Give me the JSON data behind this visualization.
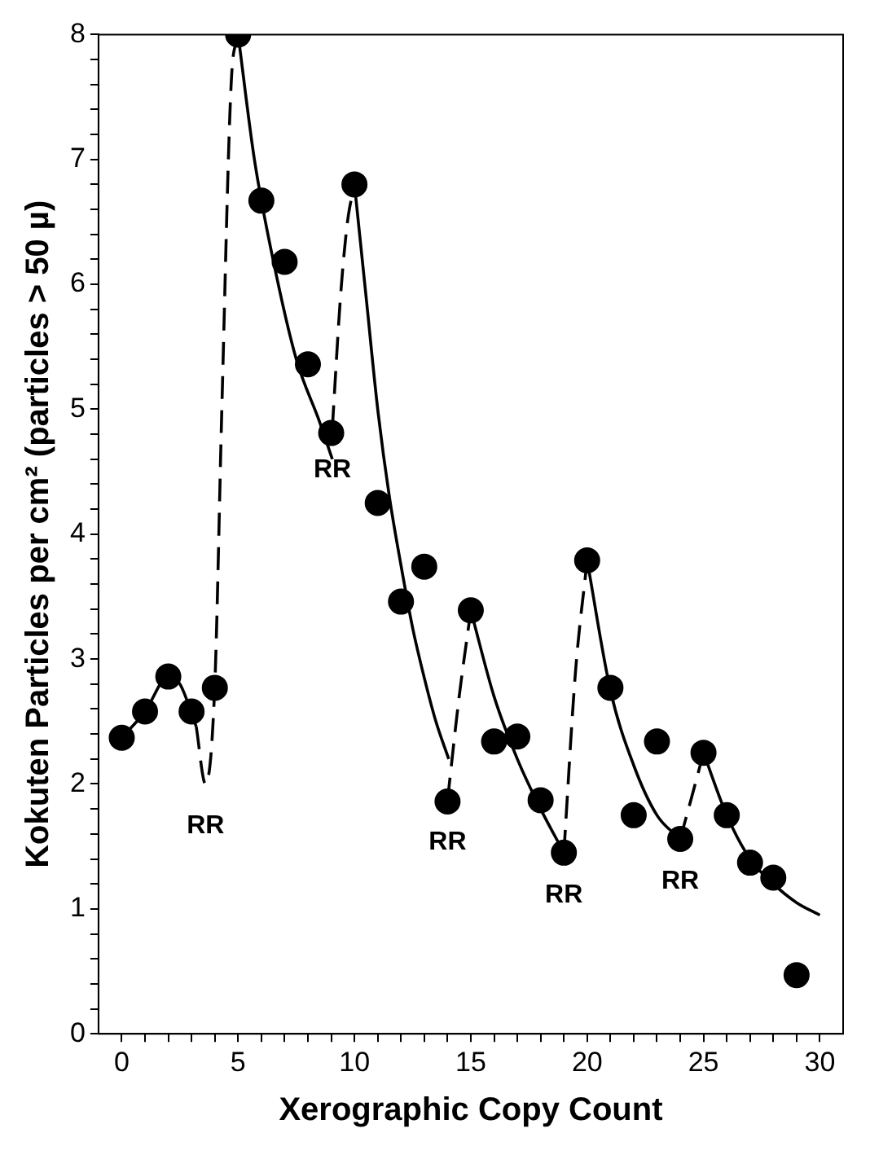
{
  "chart_data": {
    "type": "scatter",
    "xlabel": "Xerographic Copy Count",
    "ylabel": "Kokuten Particles per cm² (particles > 50 µ)",
    "xlim": [
      -1,
      31
    ],
    "ylim": [
      0,
      8
    ],
    "xticks": [
      0,
      {
        "value": 1,
        "label": null
      },
      {
        "value": 2,
        "label": null
      },
      {
        "value": 3,
        "label": null
      },
      {
        "value": 4,
        "label": null
      },
      5,
      {
        "value": 6,
        "label": null
      },
      {
        "value": 7,
        "label": null
      },
      {
        "value": 8,
        "label": null
      },
      {
        "value": 9,
        "label": null
      },
      10,
      {
        "value": 11,
        "label": null
      },
      {
        "value": 12,
        "label": null
      },
      {
        "value": 13,
        "label": null
      },
      {
        "value": 14,
        "label": null
      },
      15,
      {
        "value": 16,
        "label": null
      },
      {
        "value": 17,
        "label": null
      },
      {
        "value": 18,
        "label": null
      },
      {
        "value": 19,
        "label": null
      },
      20,
      {
        "value": 21,
        "label": null
      },
      {
        "value": 22,
        "label": null
      },
      {
        "value": 23,
        "label": null
      },
      {
        "value": 24,
        "label": null
      },
      25,
      {
        "value": 26,
        "label": null
      },
      {
        "value": 27,
        "label": null
      },
      {
        "value": 28,
        "label": null
      },
      {
        "value": 29,
        "label": null
      },
      30
    ],
    "yticks": [
      0,
      {
        "value": 0.2,
        "label": null
      },
      {
        "value": 0.4,
        "label": null
      },
      {
        "value": 0.6,
        "label": null
      },
      {
        "value": 0.8,
        "label": null
      },
      1,
      {
        "value": 1.2,
        "label": null
      },
      {
        "value": 1.4,
        "label": null
      },
      {
        "value": 1.6,
        "label": null
      },
      {
        "value": 1.8,
        "label": null
      },
      2,
      {
        "value": 2.2,
        "label": null
      },
      {
        "value": 2.4,
        "label": null
      },
      {
        "value": 2.6,
        "label": null
      },
      {
        "value": 2.8,
        "label": null
      },
      3,
      {
        "value": 3.2,
        "label": null
      },
      {
        "value": 3.4,
        "label": null
      },
      {
        "value": 3.6,
        "label": null
      },
      {
        "value": 3.8,
        "label": null
      },
      4,
      {
        "value": 4.2,
        "label": null
      },
      {
        "value": 4.4,
        "label": null
      },
      {
        "value": 4.6,
        "label": null
      },
      {
        "value": 4.8,
        "label": null
      },
      5,
      {
        "value": 5.2,
        "label": null
      },
      {
        "value": 5.4,
        "label": null
      },
      {
        "value": 5.6,
        "label": null
      },
      {
        "value": 5.8,
        "label": null
      },
      6,
      {
        "value": 6.2,
        "label": null
      },
      {
        "value": 6.4,
        "label": null
      },
      {
        "value": 6.6,
        "label": null
      },
      {
        "value": 6.8,
        "label": null
      },
      7,
      {
        "value": 7.2,
        "label": null
      },
      {
        "value": 7.4,
        "label": null
      },
      {
        "value": 7.6,
        "label": null
      },
      {
        "value": 7.8,
        "label": null
      },
      8
    ],
    "grid": false,
    "legend": false,
    "series": [
      {
        "type": "scatter",
        "marker": "circle",
        "color": "#000000",
        "x": [
          0,
          1,
          2,
          3,
          4,
          5,
          6,
          7,
          8,
          9,
          10,
          11,
          12,
          13,
          14,
          15,
          16,
          17,
          18,
          19,
          20,
          21,
          22,
          23,
          24,
          25,
          26,
          27,
          28,
          29
        ],
        "values": [
          2.37,
          2.58,
          2.86,
          2.58,
          2.77,
          8.0,
          6.67,
          6.18,
          5.36,
          4.81,
          6.8,
          4.25,
          3.46,
          3.74,
          1.86,
          3.39,
          2.34,
          2.38,
          1.87,
          1.45,
          3.79,
          2.77,
          1.75,
          2.34,
          1.56,
          2.25,
          1.75,
          1.37,
          1.25,
          0.47
        ]
      },
      {
        "type": "line",
        "marker": "none",
        "line_style": "solid",
        "color": "#000000",
        "x": [
          0,
          1,
          2,
          2.5,
          3.2
        ],
        "values": [
          2.37,
          2.58,
          2.86,
          2.8,
          2.46
        ]
      },
      {
        "type": "line",
        "marker": "none",
        "line_style": "dashed",
        "color": "#000000",
        "x": [
          3.2,
          3.6,
          4,
          4.3,
          4.7,
          5
        ],
        "values": [
          2.46,
          2.0,
          2.8,
          5.0,
          7.6,
          8.0
        ]
      },
      {
        "type": "line",
        "marker": "none",
        "line_style": "solid",
        "color": "#000000",
        "x": [
          5,
          5.7,
          6.5,
          7.5,
          8.5,
          9.05
        ],
        "values": [
          8.0,
          7.0,
          6.2,
          5.4,
          4.9,
          4.6
        ]
      },
      {
        "type": "line",
        "marker": "none",
        "line_style": "dashed",
        "color": "#000000",
        "x": [
          9.05,
          9.4,
          9.7,
          10
        ],
        "values": [
          4.85,
          5.9,
          6.5,
          6.8
        ]
      },
      {
        "type": "line",
        "marker": "none",
        "line_style": "solid",
        "color": "#000000",
        "x": [
          10,
          10.5,
          11,
          11.5,
          12,
          12.5,
          13,
          13.5,
          14.05
        ],
        "values": [
          6.8,
          5.9,
          5.0,
          4.3,
          3.75,
          3.25,
          2.85,
          2.5,
          2.2
        ]
      },
      {
        "type": "line",
        "marker": "none",
        "line_style": "dashed",
        "color": "#000000",
        "x": [
          14,
          14.5,
          15
        ],
        "values": [
          1.87,
          2.7,
          3.39
        ]
      },
      {
        "type": "line",
        "marker": "none",
        "line_style": "solid",
        "color": "#000000",
        "x": [
          15,
          16,
          17,
          18,
          19
        ],
        "values": [
          3.39,
          2.7,
          2.2,
          1.8,
          1.45
        ]
      },
      {
        "type": "line",
        "marker": "none",
        "line_style": "dashed",
        "color": "#000000",
        "x": [
          19,
          19.5,
          20
        ],
        "values": [
          1.45,
          2.9,
          3.79
        ]
      },
      {
        "type": "line",
        "marker": "none",
        "line_style": "solid",
        "color": "#000000",
        "x": [
          20,
          21,
          22,
          23,
          24
        ],
        "values": [
          3.79,
          2.75,
          2.15,
          1.75,
          1.56
        ]
      },
      {
        "type": "line",
        "marker": "none",
        "line_style": "dashed",
        "color": "#000000",
        "x": [
          24,
          24.5,
          25
        ],
        "values": [
          1.56,
          1.9,
          2.25
        ]
      },
      {
        "type": "line",
        "marker": "none",
        "line_style": "solid",
        "color": "#000000",
        "x": [
          25,
          26,
          27,
          28,
          29,
          30
        ],
        "values": [
          2.25,
          1.75,
          1.4,
          1.2,
          1.05,
          0.95
        ]
      }
    ],
    "annotations": [
      "RR",
      "RR",
      "RR",
      "RR",
      "RR"
    ]
  }
}
